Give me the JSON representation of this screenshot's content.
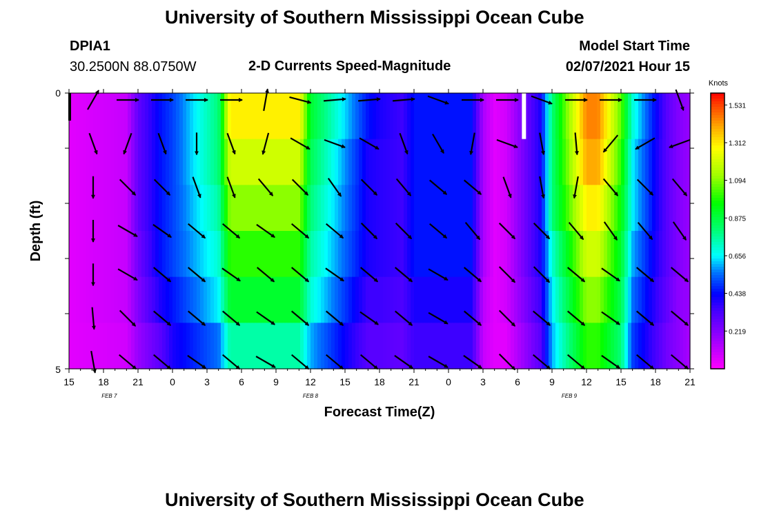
{
  "header": {
    "title": "University of Southern Mississippi Ocean Cube",
    "station_id": "DPIA1",
    "station_coords": "30.2500N 88.0750W",
    "product": "2-D Currents Speed-Magnitude",
    "model_start_label": "Model Start Time",
    "model_start_value": "02/07/2021 Hour 15"
  },
  "footer": {
    "title": "University of Southern Mississippi Ocean Cube"
  },
  "chart_data": {
    "type": "heatmap",
    "xlabel": "Forecast Time(Z)",
    "ylabel": "Depth (ft)",
    "x_tick_labels": [
      "15",
      "18",
      "21",
      "0",
      "3",
      "6",
      "9",
      "12",
      "15",
      "18",
      "21",
      "0",
      "3",
      "6",
      "9",
      "12",
      "15",
      "18",
      "21"
    ],
    "date_labels": [
      {
        "text": "FEB 7",
        "hour_index": 3.5
      },
      {
        "text": "FEB 8",
        "hour_index": 21
      },
      {
        "text": "FEB 9",
        "hour_index": 43.5
      }
    ],
    "y_tick_labels": [
      "0",
      "5"
    ],
    "ylim": [
      0,
      5
    ],
    "colorbar": {
      "units": "Knots",
      "tick_labels": [
        "1.531",
        "1.312",
        "1.094",
        "0.875",
        "0.656",
        "0.438",
        "0.219"
      ],
      "range": [
        0,
        1.6
      ]
    },
    "time_knots": [
      0,
      5,
      6,
      8,
      9,
      13,
      14,
      20,
      21,
      26,
      27,
      29,
      30,
      35,
      36,
      37,
      38,
      41,
      42,
      45,
      46,
      48,
      49,
      52,
      53,
      54
    ],
    "speed_profiles": [
      [
        0.05,
        0.1,
        0.28,
        0.45,
        0.5,
        0.8,
        1.3,
        1.3,
        0.9,
        0.45,
        0.4,
        0.35,
        0.45,
        0.45,
        0.15,
        0.05,
        0.08,
        0.4,
        0.8,
        1.45,
        1.45,
        1.05,
        0.7,
        0.3,
        0.22,
        0.18
      ],
      [
        0.05,
        0.1,
        0.28,
        0.45,
        0.5,
        0.8,
        1.2,
        1.2,
        0.85,
        0.4,
        0.38,
        0.35,
        0.45,
        0.45,
        0.15,
        0.05,
        0.08,
        0.4,
        0.8,
        1.4,
        1.4,
        1.0,
        0.65,
        0.3,
        0.22,
        0.18
      ],
      [
        0.05,
        0.1,
        0.28,
        0.45,
        0.5,
        0.75,
        1.1,
        1.1,
        0.8,
        0.4,
        0.38,
        0.35,
        0.45,
        0.45,
        0.15,
        0.05,
        0.08,
        0.4,
        0.8,
        1.3,
        1.3,
        0.95,
        0.65,
        0.3,
        0.22,
        0.18
      ],
      [
        0.05,
        0.1,
        0.25,
        0.45,
        0.5,
        0.7,
        1.0,
        1.0,
        0.75,
        0.4,
        0.38,
        0.35,
        0.45,
        0.45,
        0.15,
        0.05,
        0.08,
        0.4,
        0.7,
        1.2,
        1.2,
        0.9,
        0.6,
        0.3,
        0.22,
        0.18
      ],
      [
        0.05,
        0.1,
        0.22,
        0.4,
        0.45,
        0.65,
        0.9,
        0.9,
        0.7,
        0.35,
        0.35,
        0.32,
        0.4,
        0.4,
        0.12,
        0.05,
        0.08,
        0.35,
        0.65,
        1.1,
        1.1,
        0.85,
        0.55,
        0.28,
        0.2,
        0.18
      ],
      [
        0.05,
        0.08,
        0.18,
        0.3,
        0.4,
        0.55,
        0.75,
        0.75,
        0.6,
        0.3,
        0.3,
        0.28,
        0.35,
        0.35,
        0.1,
        0.05,
        0.05,
        0.3,
        0.6,
        1.0,
        1.0,
        0.8,
        0.5,
        0.25,
        0.2,
        0.15
      ]
    ],
    "arrow_hours": [
      3,
      6,
      9,
      12,
      15,
      18,
      21,
      24,
      27,
      30,
      33,
      36,
      39,
      42,
      45,
      48,
      51,
      54
    ],
    "arrow_angles_deg": [
      [
        60,
        0,
        0,
        0,
        0,
        80,
        -15,
        5,
        5,
        5,
        -20,
        0,
        0,
        -20,
        0,
        0,
        0,
        -70
      ],
      [
        -70,
        -110,
        -70,
        -90,
        -70,
        -105,
        -30,
        -20,
        -30,
        -70,
        -60,
        -100,
        -20,
        -80,
        -85,
        -130,
        -150,
        -160
      ],
      [
        -90,
        -45,
        -45,
        -70,
        -70,
        -50,
        -45,
        -55,
        -45,
        -50,
        -40,
        -40,
        -70,
        -80,
        -100,
        -50,
        -45,
        -50
      ],
      [
        -90,
        -30,
        -35,
        -40,
        -40,
        -35,
        -40,
        -40,
        -45,
        -45,
        -40,
        -50,
        -45,
        -45,
        -50,
        -55,
        -50,
        -55
      ],
      [
        -90,
        -30,
        -40,
        -40,
        -35,
        -40,
        -40,
        -35,
        -40,
        -40,
        -30,
        -40,
        -45,
        -45,
        -40,
        -35,
        -40,
        -40
      ],
      [
        -85,
        -45,
        -40,
        -40,
        -40,
        -35,
        -40,
        -40,
        -35,
        -40,
        -30,
        -40,
        -45,
        -40,
        -40,
        -35,
        -40,
        -40
      ],
      [
        -80,
        -40,
        -40,
        -35,
        -40,
        -30,
        -40,
        -40,
        -40,
        -35,
        -30,
        -35,
        -45,
        -40,
        -40,
        -35,
        -40,
        -40
      ]
    ],
    "grid": false,
    "legend": "colorbar-right"
  }
}
